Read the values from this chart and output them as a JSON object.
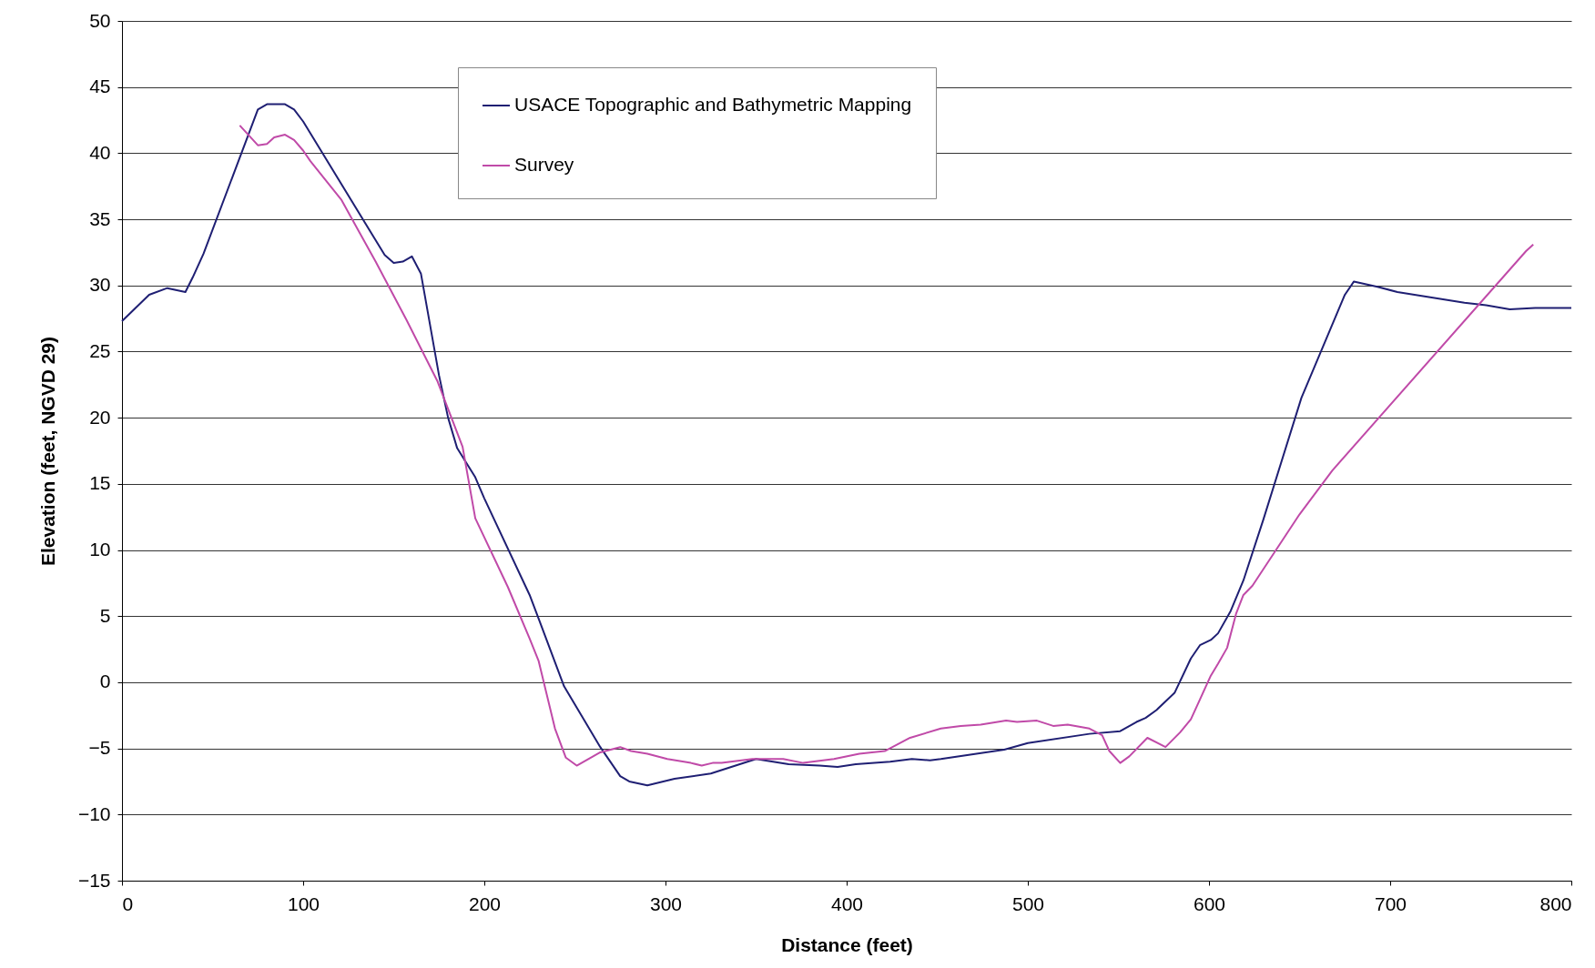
{
  "chart_data": {
    "type": "line",
    "xlabel": "Distance (feet)",
    "ylabel": "Elevation (feet, NGVD 29)",
    "xlim": [
      0,
      800
    ],
    "xticks": [
      0,
      100,
      200,
      300,
      400,
      500,
      600,
      700,
      800
    ],
    "ylim": [
      -15,
      50
    ],
    "yticks": [
      -15,
      -10,
      -5,
      0,
      5,
      10,
      15,
      20,
      25,
      30,
      35,
      40,
      45,
      50
    ],
    "grid": "y",
    "legend": "top",
    "line_style": "solid",
    "marker": "none",
    "series": [
      {
        "name": "USACE Topographic and Bathymetric Mapping",
        "color": "#1f1f73",
        "x": [
          0,
          15,
          25,
          35,
          39,
          45,
          75,
          80,
          90,
          95,
          100,
          145,
          150,
          155,
          160,
          165,
          175,
          180,
          185,
          195,
          200,
          225,
          230,
          244,
          264,
          275,
          280,
          290,
          305,
          325,
          350,
          368,
          385,
          395,
          405,
          424,
          436,
          446,
          452,
          487,
          500,
          534,
          551,
          560,
          565,
          571,
          581,
          590,
          595,
          601,
          605,
          612,
          619,
          630,
          651,
          675,
          680,
          693,
          704,
          741,
          753,
          766,
          780,
          800
        ],
        "values": [
          27.3,
          29.3,
          29.8,
          29.5,
          30.6,
          32.4,
          43.3,
          43.7,
          43.7,
          43.3,
          42.4,
          32.3,
          31.7,
          31.8,
          32.2,
          30.9,
          23.2,
          20,
          17.7,
          15.5,
          13.9,
          6.6,
          4.8,
          -0.3,
          -4.9,
          -7.1,
          -7.5,
          -7.8,
          -7.3,
          -6.9,
          -5.8,
          -6.2,
          -6.3,
          -6.4,
          -6.2,
          -6,
          -5.8,
          -5.9,
          -5.8,
          -5.1,
          -4.6,
          -3.9,
          -3.7,
          -3,
          -2.7,
          -2.1,
          -0.8,
          1.8,
          2.8,
          3.2,
          3.7,
          5.4,
          7.7,
          12.3,
          21.5,
          29.3,
          30.3,
          29.9,
          29.5,
          28.7,
          28.5,
          28.2,
          28.3,
          28.3
        ]
      },
      {
        "name": "Survey",
        "color": "#c04aa8",
        "x": [
          65,
          75,
          80,
          84,
          90,
          95,
          100,
          104,
          121,
          140,
          157,
          174,
          188,
          195,
          213,
          225,
          230,
          239,
          245,
          251,
          264,
          275,
          281,
          290,
          301,
          314,
          320,
          326,
          331,
          348,
          365,
          376,
          393,
          407,
          421,
          435,
          452,
          463,
          474,
          488,
          494,
          505,
          514,
          522,
          534,
          541,
          545,
          551,
          556,
          566,
          576,
          584,
          590,
          595,
          601,
          605,
          610,
          615,
          619,
          624,
          650,
          668,
          775,
          779
        ],
        "values": [
          42.1,
          40.6,
          40.7,
          41.2,
          41.4,
          41,
          40.2,
          39.4,
          36.5,
          31.8,
          27.4,
          22.8,
          17.8,
          12.4,
          7.2,
          3.3,
          1.6,
          -3.5,
          -5.7,
          -6.3,
          -5.3,
          -4.9,
          -5.2,
          -5.4,
          -5.8,
          -6.1,
          -6.3,
          -6.1,
          -6.1,
          -5.8,
          -5.8,
          -6.1,
          -5.8,
          -5.4,
          -5.2,
          -4.2,
          -3.5,
          -3.3,
          -3.2,
          -2.9,
          -3,
          -2.9,
          -3.3,
          -3.2,
          -3.5,
          -4,
          -5.2,
          -6.1,
          -5.6,
          -4.2,
          -4.9,
          -3.8,
          -2.8,
          -1.3,
          0.5,
          1.4,
          2.6,
          5.2,
          6.6,
          7.3,
          12.7,
          16,
          32.6,
          33.1
        ]
      }
    ]
  }
}
